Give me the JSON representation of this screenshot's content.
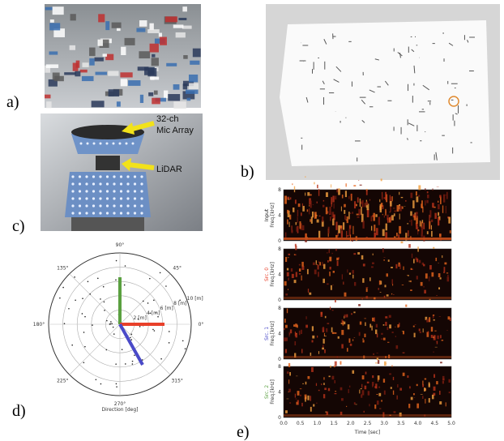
{
  "panels": {
    "a": "a)",
    "b": "b)",
    "c": "c)",
    "d": "d)",
    "e": "e)"
  },
  "robot": {
    "mic_label": [
      "32-ch",
      "Mic Array"
    ],
    "lidar_label": "LiDAR"
  },
  "polar": {
    "angle_labels": [
      "0°",
      "45°",
      "90°",
      "135°",
      "180°",
      "225°",
      "270°",
      "315°"
    ],
    "radial_labels": [
      "2 [m]",
      "4 [m]",
      "6 [m]",
      "8 [m]",
      "10 [m]"
    ],
    "xlabel": "Direction [deg]"
  },
  "spectrogram": {
    "rows": [
      {
        "name": "Input",
        "ylabel": "Freq.[kHz]",
        "color": "#222222"
      },
      {
        "name": "Src. 0",
        "ylabel": "Freq.[kHz]",
        "color": "#e8402a"
      },
      {
        "name": "Src. 1",
        "ylabel": "Freq.[kHz]",
        "color": "#4a4ac8"
      },
      {
        "name": "Src. 2",
        "ylabel": "Freq.[kHz]",
        "color": "#5aa040"
      }
    ],
    "yticks": [
      "0",
      "4",
      "8"
    ],
    "xticks": [
      "0.0",
      "0.5",
      "1.0",
      "1.5",
      "2.0",
      "2.5",
      "3.0",
      "3.5",
      "4.0",
      "4.5",
      "5.0"
    ],
    "xlabel": "Time [sec]"
  }
}
